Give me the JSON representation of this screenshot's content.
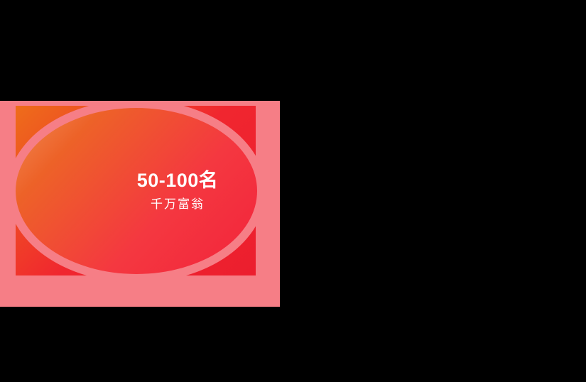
{
  "screen": {
    "background": "#000000"
  },
  "theme": {
    "card_pink": "#F67E86",
    "panel_orange": "#EE6D1A",
    "panel_red_mid": "#F0262F",
    "panel_red": "#EC1E2E",
    "ellipse_orange_light": "#F08B55",
    "ellipse_orange": "#ED6228",
    "ellipse_red_mid": "#F43840",
    "ellipse_red": "#F2233B",
    "text_white": "#FFFFFF"
  },
  "card": {
    "rank_label": "50-100名",
    "prize_label": "千万富翁"
  }
}
